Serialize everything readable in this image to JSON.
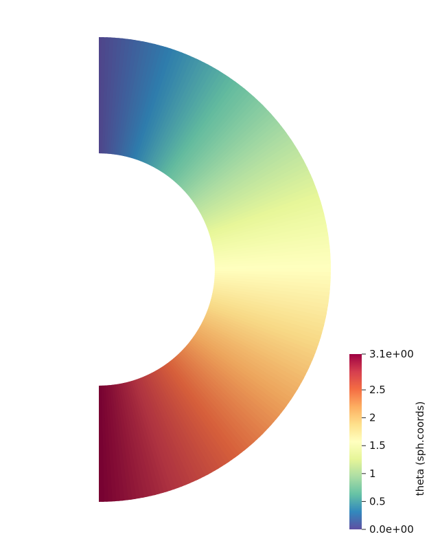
{
  "chart_data": {
    "type": "heatmap",
    "shape": "half-annulus",
    "field": {
      "theta_min": 0.0,
      "theta_max": 3.14159,
      "inner_radius_ratio": 0.5
    },
    "colorbar": {
      "title": "theta (sph.coords)",
      "range": [
        0.0,
        3.14159
      ],
      "ticks": [
        {
          "value": 3.14159,
          "label": "3.1e+00"
        },
        {
          "value": 2.5,
          "label": "2.5"
        },
        {
          "value": 2.0,
          "label": "2"
        },
        {
          "value": 1.5,
          "label": "1.5"
        },
        {
          "value": 1.0,
          "label": "1"
        },
        {
          "value": 0.5,
          "label": "0.5"
        },
        {
          "value": 0.0,
          "label": "0.0e+00"
        }
      ],
      "colormap": [
        {
          "t": 0.0,
          "color": "#5e4fa2"
        },
        {
          "t": 0.1,
          "color": "#3288bd"
        },
        {
          "t": 0.2,
          "color": "#66c2a5"
        },
        {
          "t": 0.3,
          "color": "#abdda4"
        },
        {
          "t": 0.4,
          "color": "#e6f598"
        },
        {
          "t": 0.5,
          "color": "#ffffbf"
        },
        {
          "t": 0.6,
          "color": "#fee08b"
        },
        {
          "t": 0.7,
          "color": "#fdae61"
        },
        {
          "t": 0.8,
          "color": "#f46d43"
        },
        {
          "t": 0.9,
          "color": "#d53e4f"
        },
        {
          "t": 1.0,
          "color": "#9e0142"
        }
      ]
    },
    "shading": "lit"
  }
}
